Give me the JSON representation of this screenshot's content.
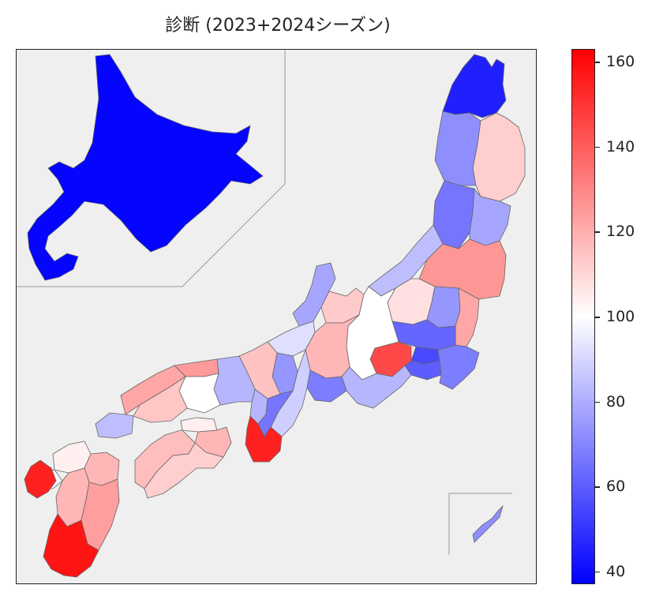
{
  "title": "診断 (2023+2024シーズン)",
  "colorbar": {
    "min": 37,
    "max": 163,
    "ticks": [
      40,
      60,
      80,
      100,
      120,
      140,
      160
    ],
    "colors": {
      "low": "#0000ff",
      "mid": "#ffffff",
      "high": "#ff0000"
    }
  },
  "map": {
    "background": "#efefef",
    "regions": [
      {
        "id": "hokkaido",
        "value": 38
      },
      {
        "id": "aomori",
        "value": 45
      },
      {
        "id": "akita",
        "value": 72
      },
      {
        "id": "iwate",
        "value": 112
      },
      {
        "id": "yamagata",
        "value": 66
      },
      {
        "id": "miyagi",
        "value": 78
      },
      {
        "id": "niigata",
        "value": 84
      },
      {
        "id": "fukushima",
        "value": 126
      },
      {
        "id": "ishikawa",
        "value": 78
      },
      {
        "id": "toyama",
        "value": 113
      },
      {
        "id": "nagano",
        "value": 100
      },
      {
        "id": "gunma",
        "value": 108
      },
      {
        "id": "tochigi",
        "value": 74
      },
      {
        "id": "ibaraki",
        "value": 122
      },
      {
        "id": "saitama",
        "value": 62
      },
      {
        "id": "tokyo",
        "value": 55
      },
      {
        "id": "chiba",
        "value": 68
      },
      {
        "id": "kanagawa",
        "value": 60
      },
      {
        "id": "yamanashi",
        "value": 145
      },
      {
        "id": "shizuoka",
        "value": 82
      },
      {
        "id": "fukui",
        "value": 92
      },
      {
        "id": "gifu",
        "value": 118
      },
      {
        "id": "aichi",
        "value": 68
      },
      {
        "id": "shiga",
        "value": 74
      },
      {
        "id": "mie",
        "value": 88
      },
      {
        "id": "kyoto",
        "value": 115
      },
      {
        "id": "osaka",
        "value": 82
      },
      {
        "id": "nara",
        "value": 66
      },
      {
        "id": "wakayama",
        "value": 155
      },
      {
        "id": "hyogo",
        "value": 82
      },
      {
        "id": "tottori",
        "value": 125
      },
      {
        "id": "okayama",
        "value": 100
      },
      {
        "id": "shimane",
        "value": 122
      },
      {
        "id": "hiroshima",
        "value": 114
      },
      {
        "id": "yamaguchi",
        "value": 84
      },
      {
        "id": "kagawa",
        "value": 104
      },
      {
        "id": "tokushima",
        "value": 118
      },
      {
        "id": "ehime",
        "value": 116
      },
      {
        "id": "kochi",
        "value": 112
      },
      {
        "id": "fukuoka",
        "value": 104
      },
      {
        "id": "saga",
        "value": 98
      },
      {
        "id": "nagasaki",
        "value": 155
      },
      {
        "id": "oita",
        "value": 118
      },
      {
        "id": "kumamoto",
        "value": 118
      },
      {
        "id": "miyazaki",
        "value": 124
      },
      {
        "id": "kagoshima",
        "value": 158
      },
      {
        "id": "okinawa",
        "value": 72
      }
    ]
  }
}
